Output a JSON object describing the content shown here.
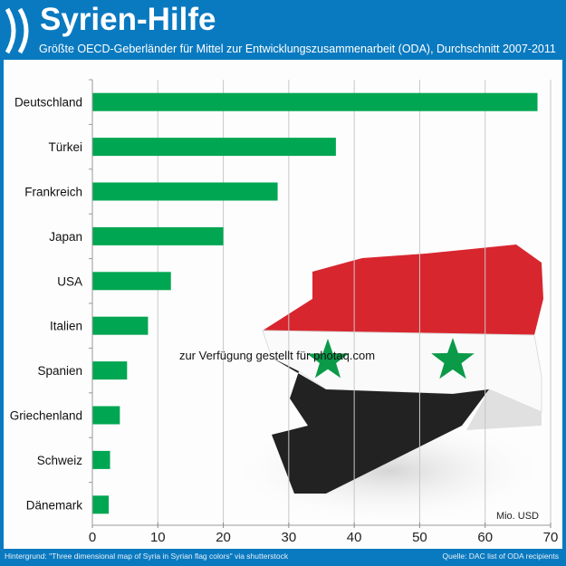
{
  "header": {
    "title": "Syrien-Hilfe",
    "subtitle": "Größte OECD-Geberländer für Mittel zur Entwicklungszusammenarbeit (ODA), Durchschnitt 2007-2011",
    "logo_icon": "oecd-logo"
  },
  "footer": {
    "background_credit": "Hintergrund: \"Three dimensional map of Syria in Syrian flag colors\" via shutterstock",
    "source": "Quelle: DAC list of ODA recipients"
  },
  "watermark": "zur Verfügung gestellt für photaq.com",
  "colors": {
    "bar": "#00a651",
    "frame": "#0a7ac0",
    "flag_red": "#d8262e",
    "flag_black": "#222222",
    "flag_star": "#0a9a48"
  },
  "chart_data": {
    "type": "bar",
    "orientation": "horizontal",
    "title": "Syrien-Hilfe",
    "categories": [
      "Deutschland",
      "Türkei",
      "Frankreich",
      "Japan",
      "USA",
      "Italien",
      "Spanien",
      "Griechenland",
      "Schweiz",
      "Dänemark"
    ],
    "values": [
      68.0,
      37.2,
      28.3,
      20.0,
      12.0,
      8.5,
      5.3,
      4.2,
      2.7,
      2.5
    ],
    "unit_label": "Mio. USD",
    "xlim": [
      0,
      70
    ],
    "xticks": [
      "0",
      "10",
      "20",
      "30",
      "40",
      "50",
      "60",
      "70"
    ],
    "grid": true
  }
}
